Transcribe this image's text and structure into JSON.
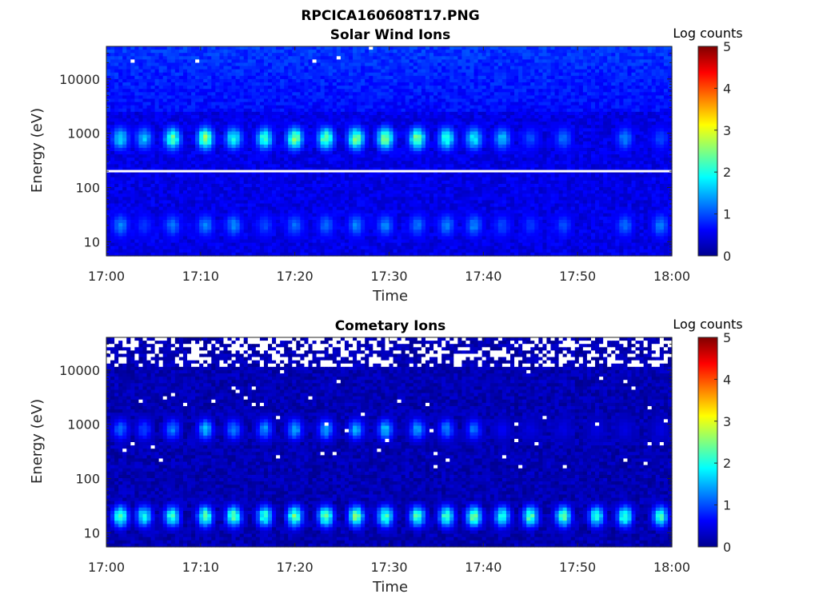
{
  "figure": {
    "title": "RPCICA160608T17.PNG"
  },
  "chart_data": [
    {
      "type": "heatmap",
      "title": "Solar Wind Ions",
      "xlabel": "Time",
      "ylabel": "Energy (eV)",
      "x_range": [
        "17:00",
        "18:00"
      ],
      "x_ticks": [
        "17:00",
        "17:10",
        "17:20",
        "17:30",
        "17:40",
        "17:50",
        "18:00"
      ],
      "y_scale": "log",
      "y_range": [
        5.5,
        40000
      ],
      "y_ticks": [
        10,
        100,
        1000,
        10000
      ],
      "y_tick_labels": [
        "10",
        "100",
        "1000",
        "10000"
      ],
      "colorbar": {
        "label": "Log counts",
        "min": 0,
        "max": 5,
        "ticks": [
          "0",
          "1",
          "2",
          "3",
          "4",
          "5"
        ],
        "colormap": "jet"
      },
      "background_log_counts": 0.5,
      "blocked_energy_line_eV": 200,
      "pulses_minutes": [
        1.5,
        4,
        7,
        10.5,
        13.5,
        16.8,
        20,
        23.3,
        26.5,
        29.6,
        33,
        36.1,
        39,
        42,
        45,
        48.5,
        55,
        58.8
      ],
      "bands": [
        {
          "center_eV": 800,
          "log_counts_peak": [
            1.8,
            1.6,
            2.4,
            2.7,
            2.0,
            2.2,
            2.6,
            2.5,
            2.6,
            2.7,
            2.6,
            2.2,
            1.9,
            1.6,
            1.0,
            1.2,
            1.3,
            1.0
          ]
        },
        {
          "center_eV": 20,
          "log_counts_peak": [
            1.3,
            0.9,
            1.2,
            1.3,
            1.3,
            1.0,
            1.2,
            1.2,
            1.3,
            1.3,
            1.2,
            1.3,
            1.3,
            1.0,
            0.9,
            1.0,
            1.2,
            1.3
          ]
        }
      ]
    },
    {
      "type": "heatmap",
      "title": "Cometary Ions",
      "xlabel": "Time",
      "ylabel": "Energy (eV)",
      "x_range": [
        "17:00",
        "18:00"
      ],
      "x_ticks": [
        "17:00",
        "17:10",
        "17:20",
        "17:30",
        "17:40",
        "17:50",
        "18:00"
      ],
      "y_scale": "log",
      "y_range": [
        5.5,
        40000
      ],
      "y_ticks": [
        10,
        100,
        1000,
        10000
      ],
      "y_tick_labels": [
        "10",
        "100",
        "1000",
        "10000"
      ],
      "colorbar": {
        "label": "Log counts",
        "min": 0,
        "max": 5,
        "ticks": [
          "0",
          "1",
          "2",
          "3",
          "4",
          "5"
        ],
        "colormap": "jet"
      },
      "background_log_counts": 0.25,
      "no_data_above_eV": 12000,
      "pulses_minutes": [
        1.5,
        4,
        7,
        10.5,
        13.5,
        16.8,
        20,
        23.3,
        26.5,
        29.6,
        33,
        36.1,
        39,
        42,
        45,
        48.5,
        52,
        55,
        58.8
      ],
      "bands": [
        {
          "center_eV": 800,
          "log_counts_peak": [
            1.2,
            1.0,
            1.3,
            1.6,
            1.3,
            1.4,
            1.5,
            1.5,
            1.5,
            1.6,
            1.5,
            1.3,
            1.2,
            0.6,
            0.5,
            0.5,
            0.5,
            0.5,
            0.5
          ]
        },
        {
          "center_eV": 20,
          "log_counts_peak": [
            2.4,
            2.1,
            2.2,
            2.4,
            2.4,
            2.2,
            2.5,
            2.5,
            2.6,
            2.4,
            2.3,
            2.3,
            2.5,
            2.1,
            2.4,
            2.4,
            2.1,
            2.3,
            2.2
          ]
        }
      ]
    }
  ]
}
